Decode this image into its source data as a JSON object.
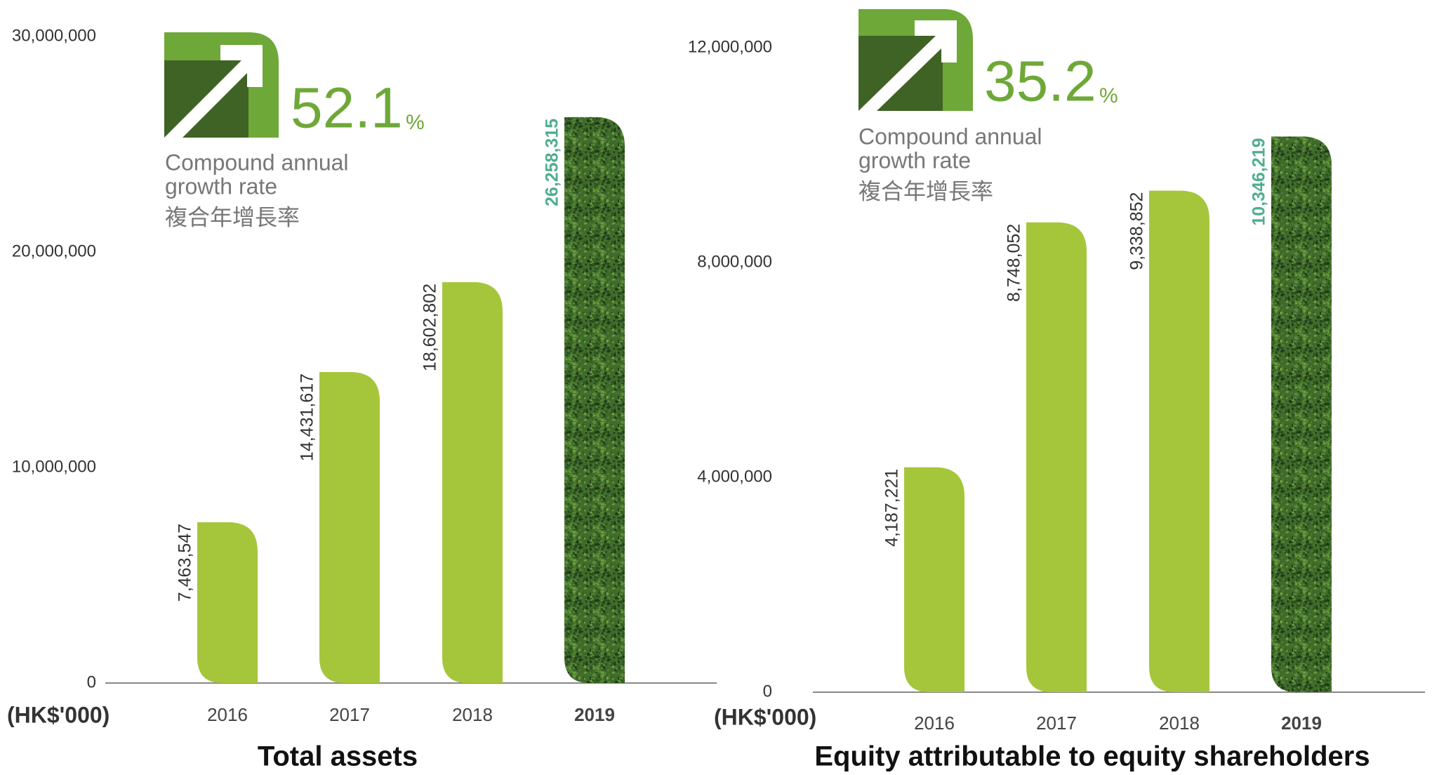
{
  "chart_data": [
    {
      "type": "bar",
      "title": "Total assets",
      "unit_label": "(HK$'000)",
      "cagr": "52.1",
      "cagr_unit": "%",
      "cagr_label_1": "Compound annual",
      "cagr_label_2": "growth rate",
      "cagr_label_3": "複合年增長率",
      "categories": [
        "2016",
        "2017",
        "2018",
        "2019"
      ],
      "values": [
        7463547,
        14431617,
        18602802,
        26258315
      ],
      "value_labels": [
        "7,463,547",
        "14,431,617",
        "18,602,802",
        "26,258,315"
      ],
      "colors": [
        "#a5c63b",
        "#a5c63b",
        "#a5c63b",
        "#3e6a2a"
      ],
      "label_colors": [
        "#333333",
        "#333333",
        "#333333",
        "#4fae8c"
      ],
      "textured": [
        false,
        false,
        false,
        true
      ],
      "ylim": [
        0,
        30000000
      ],
      "yticks": [
        0,
        {
          "value": 10000000,
          "label": "10,000,000"
        },
        {
          "value": 20000000,
          "label": "20,000,000"
        },
        {
          "value": 30000000,
          "label": "30,000,000"
        }
      ]
    },
    {
      "type": "bar",
      "title": "Equity attributable to equity shareholders",
      "unit_label": "(HK$'000)",
      "cagr": "35.2",
      "cagr_unit": "%",
      "cagr_label_1": "Compound annual",
      "cagr_label_2": "growth rate",
      "cagr_label_3": "複合年增長率",
      "categories": [
        "2016",
        "2017",
        "2018",
        "2019"
      ],
      "values": [
        4187221,
        8748052,
        9338852,
        10346219
      ],
      "value_labels": [
        "4,187,221",
        "8,748,052",
        "9,338,852",
        "10,346,219"
      ],
      "colors": [
        "#a5c63b",
        "#a5c63b",
        "#a5c63b",
        "#3e6a2a"
      ],
      "label_colors": [
        "#333333",
        "#333333",
        "#333333",
        "#4fae8c"
      ],
      "textured": [
        false,
        false,
        false,
        true
      ],
      "ylim": [
        0,
        12000000
      ],
      "yticks": [
        0,
        {
          "value": 4000000,
          "label": "4,000,000"
        },
        {
          "value": 8000000,
          "label": "8,000,000"
        },
        {
          "value": 12000000,
          "label": "12,000,000"
        }
      ]
    }
  ]
}
